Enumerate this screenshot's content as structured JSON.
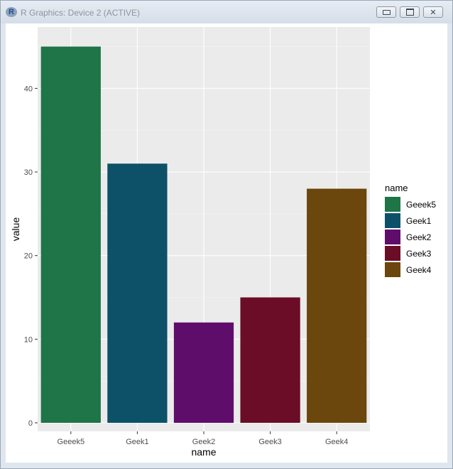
{
  "window": {
    "title": "R Graphics: Device 2 (ACTIVE)",
    "app_icon": "R-logo-icon",
    "buttons": [
      "minimize-icon",
      "maximize-icon",
      "close-icon"
    ]
  },
  "chart_data": {
    "type": "bar",
    "title": "",
    "xlabel": "name",
    "ylabel": "value",
    "categories": [
      "Geeek5",
      "Geek1",
      "Geek2",
      "Geek3",
      "Geek4"
    ],
    "values": [
      45,
      31,
      12,
      15,
      28
    ],
    "colors": [
      "#1f7448",
      "#0d5169",
      "#5f0d6b",
      "#6b0d26",
      "#6b460d"
    ],
    "ylim": [
      0,
      47
    ],
    "y_ticks": [
      0,
      10,
      20,
      30,
      40
    ],
    "y_tick_labels": [
      "0",
      "10",
      "20",
      "30",
      "40"
    ],
    "grid": true,
    "panel_background": "#ebebeb",
    "legend": {
      "title": "name",
      "position": "right",
      "entries": [
        "Geeek5",
        "Geek1",
        "Geek2",
        "Geek3",
        "Geek4"
      ]
    }
  }
}
